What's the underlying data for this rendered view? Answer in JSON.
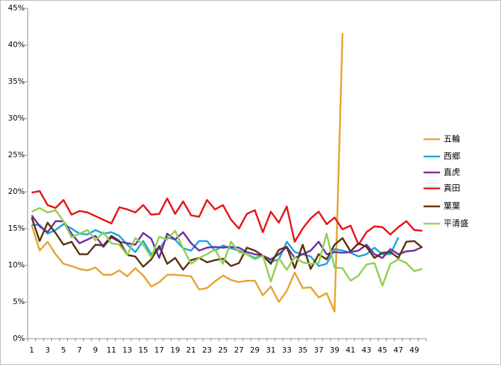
{
  "chart_data": {
    "type": "line",
    "categories": [
      1,
      null,
      3,
      null,
      5,
      null,
      7,
      null,
      9,
      null,
      11,
      null,
      13,
      null,
      15,
      null,
      17,
      null,
      19,
      null,
      21,
      null,
      23,
      null,
      25,
      null,
      27,
      null,
      29,
      null,
      31,
      null,
      33,
      null,
      35,
      null,
      37,
      null,
      39,
      null,
      41,
      null,
      43,
      null,
      45,
      null,
      47,
      null,
      49,
      null
    ],
    "ylim": [
      0,
      45
    ],
    "yticks": [
      {
        "value": 0,
        "label": "0%"
      },
      {
        "value": 5,
        "label": "5%"
      },
      {
        "value": 10,
        "label": "10%"
      },
      {
        "value": 15,
        "label": "15%"
      },
      {
        "value": 20,
        "label": "20%"
      },
      {
        "value": 25,
        "label": "25%"
      },
      {
        "value": 30,
        "label": "30%"
      },
      {
        "value": 35,
        "label": "35%"
      },
      {
        "value": 40,
        "label": "40%"
      },
      {
        "value": 45,
        "label": "45%"
      }
    ],
    "grid": false,
    "legend": "right",
    "series": [
      {
        "name": "五輪",
        "color": "#e6a532",
        "values": [
          15.5,
          12,
          13.2,
          11.5,
          10.2,
          9.9,
          9.5,
          9.3,
          9.7,
          8.7,
          8.7,
          9.3,
          8.5,
          9.6,
          8.6,
          7.1,
          7.7,
          8.7,
          8.7,
          8.6,
          8.5,
          6.7,
          6.9,
          7.8,
          8.6,
          8.0,
          7.7,
          7.9,
          7.9,
          5.9,
          7.1,
          5.0,
          6.5,
          9.0,
          6.9,
          7.0,
          5.6,
          6.2,
          3.7,
          41.6,
          null,
          null,
          null,
          null,
          null,
          null,
          null,
          null,
          null,
          null
        ]
      },
      {
        "name": "西郷",
        "color": "#1aa7e0",
        "values": [
          15.5,
          15.5,
          14.3,
          14.8,
          15.6,
          15.0,
          14.3,
          14.2,
          14.8,
          14.3,
          14.5,
          14.0,
          12.8,
          11.8,
          13.3,
          11.5,
          12.2,
          13.8,
          13.5,
          12.3,
          12.0,
          13.3,
          13.3,
          12.0,
          12.7,
          12.3,
          12.0,
          11.5,
          11.0,
          11.3,
          10.5,
          10.8,
          13.2,
          11.8,
          11.5,
          11.2,
          9.9,
          10.2,
          12.2,
          12.0,
          11.7,
          11.2,
          11.5,
          12.4,
          11.5,
          11.5,
          13.8,
          null,
          null,
          null
        ]
      },
      {
        "name": "直虎",
        "color": "#7030a0",
        "values": [
          16.8,
          15.3,
          14.5,
          16.0,
          16.0,
          14.3,
          13.0,
          13.5,
          14.0,
          12.5,
          13.8,
          13.2,
          13.0,
          12.8,
          14.4,
          13.6,
          11.0,
          14.3,
          13.5,
          14.5,
          13.0,
          12.0,
          12.4,
          12.5,
          12.4,
          12.5,
          12.4,
          11.8,
          11.5,
          11.3,
          10.8,
          11.5,
          12.5,
          11.0,
          11.5,
          12.0,
          13.2,
          11.5,
          11.8,
          11.7,
          11.8,
          12.0,
          12.8,
          11.5,
          11.0,
          12.2,
          11.5,
          11.9,
          12.0,
          12.5
        ]
      },
      {
        "name": "真田",
        "color": "#e81418",
        "values": [
          19.9,
          20.1,
          18.2,
          17.8,
          18.9,
          16.9,
          17.4,
          17.2,
          16.7,
          16.2,
          15.7,
          17.9,
          17.6,
          17.2,
          18.2,
          16.9,
          17.0,
          19.1,
          17.0,
          18.7,
          16.8,
          16.6,
          18.9,
          17.6,
          18.2,
          16.2,
          15.0,
          17.0,
          17.5,
          14.5,
          17.3,
          15.8,
          18.0,
          13.2,
          15.0,
          16.4,
          17.3,
          15.6,
          16.5,
          14.9,
          15.4,
          12.8,
          14.5,
          15.3,
          15.2,
          14.2,
          15.2,
          16.0,
          14.8,
          14.7
        ]
      },
      {
        "name": "葉葉",
        "color": "#5c3310",
        "values": [
          16.5,
          13.3,
          15.8,
          14.4,
          12.8,
          13.2,
          11.5,
          11.5,
          12.8,
          12.7,
          14.0,
          13.3,
          11.4,
          11.2,
          9.8,
          10.8,
          12.6,
          10.2,
          11.0,
          9.4,
          10.7,
          11.0,
          10.4,
          10.7,
          10.9,
          9.9,
          10.3,
          12.4,
          12.0,
          11.3,
          10.2,
          12.1,
          12.5,
          9.6,
          12.8,
          9.5,
          11.5,
          10.8,
          12.8,
          13.7,
          11.9,
          13.0,
          12.5,
          11.0,
          11.7,
          11.8,
          11.0,
          13.2,
          13.3,
          12.4
        ]
      },
      {
        "name": "平清盛",
        "color": "#92d050",
        "values": [
          17.3,
          17.8,
          17.2,
          17.5,
          16.0,
          13.8,
          14.3,
          14.8,
          13.4,
          14.5,
          13.0,
          12.8,
          11.4,
          13.7,
          12.8,
          11.1,
          13.9,
          13.5,
          14.7,
          12.3,
          10.2,
          11.0,
          11.5,
          12.2,
          10.2,
          13.2,
          11.8,
          11.5,
          10.8,
          11.3,
          7.8,
          11.0,
          9.4,
          11.1,
          10.4,
          10.2,
          10.3,
          14.3,
          9.7,
          9.6,
          7.9,
          8.6,
          10.1,
          10.3,
          7.2,
          10.2,
          10.8,
          10.3,
          9.2,
          9.5
        ]
      }
    ]
  }
}
